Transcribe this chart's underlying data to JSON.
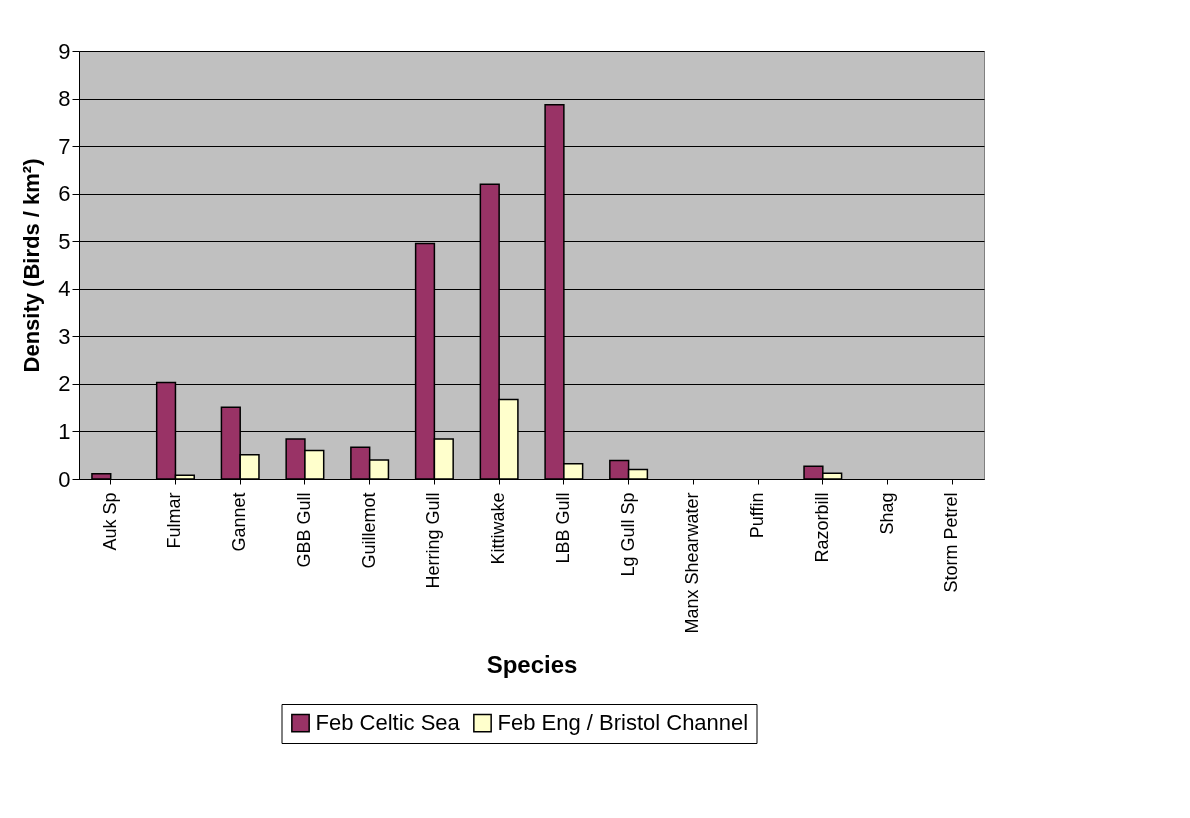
{
  "chart_data": {
    "type": "bar",
    "xlabel": "Species",
    "ylabel": "Density (Birds / km²)",
    "categories": [
      "Auk Sp",
      "Fulmar",
      "Gannet",
      "GBB Gull",
      "Guillemot",
      "Herring Gull",
      "Kittiwake",
      "LBB Gull",
      "Lg Gull Sp",
      "Manx Shearwater",
      "Puffin",
      "Razorbill",
      "Shag",
      "Storm Petrel"
    ],
    "series": [
      {
        "name": "Feb Celtic Sea",
        "color": "#993366",
        "values": [
          0.11,
          2.03,
          1.51,
          0.84,
          0.67,
          4.95,
          6.2,
          7.87,
          0.39,
          null,
          null,
          0.27,
          null,
          null
        ]
      },
      {
        "name": "Feb Eng / Bristol Channel",
        "color": "#ffffcc",
        "values": [
          null,
          0.08,
          0.51,
          0.6,
          0.4,
          0.84,
          1.67,
          0.32,
          0.2,
          null,
          null,
          0.12,
          null,
          null
        ]
      }
    ],
    "ylim": [
      0,
      9
    ],
    "yticks": [
      0,
      1,
      2,
      3,
      4,
      5,
      6,
      7,
      8,
      9
    ],
    "grid": "y",
    "legend": "bottom"
  }
}
